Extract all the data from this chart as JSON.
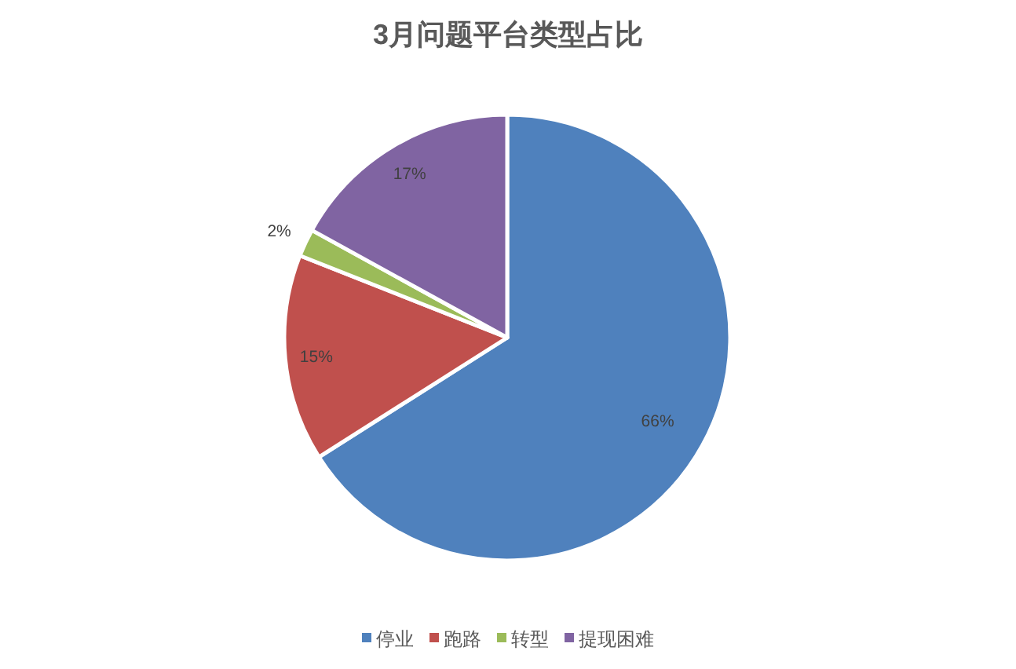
{
  "chart_data": {
    "type": "pie",
    "title": "3月问题平台类型占比",
    "categories": [
      "停业",
      "跑路",
      "转型",
      "提现困难"
    ],
    "values": [
      66,
      15,
      2,
      17
    ],
    "colors": [
      "#4f81bd",
      "#c0504d",
      "#9bbb59",
      "#8064a2"
    ],
    "value_labels": [
      "66%",
      "15%",
      "2%",
      "17%"
    ],
    "legend": "bottom"
  }
}
